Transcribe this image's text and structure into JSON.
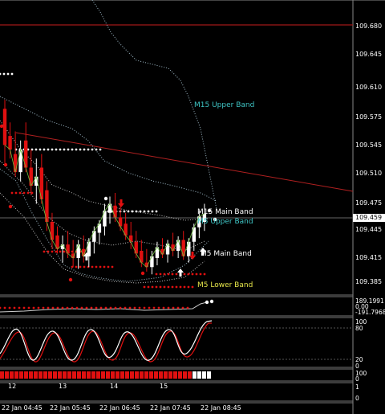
{
  "colors": {
    "background": "#000000",
    "bull": "#ffffff",
    "bear": "#e01010",
    "m15_band": "#9fbac8",
    "m5_band": "#bfbfbf",
    "trendline": "#b02020",
    "upper_label": "#3fc6c6",
    "lower_label": "#e6e64a",
    "main_label": "#ffffff"
  },
  "price_axis": {
    "ticks": [
      "109.680",
      "109.645",
      "109.610",
      "109.575",
      "109.545",
      "109.510",
      "109.475",
      "109.445",
      "109.415",
      "109.385"
    ],
    "current_price": "109.459",
    "range": [
      109.37,
      109.69
    ]
  },
  "band_labels": {
    "m15_upper": "M15 Upper Band",
    "m15_main": "M15 Main Band",
    "m5_upper": "M5 Upper Band",
    "m5_main": "M5 Main Band",
    "m5_lower": "M5 Lower Band"
  },
  "sub_indicators": {
    "osc1": [
      "189.1991",
      "0.00",
      "-191.7968"
    ],
    "stoch": [
      "100",
      "80",
      "20",
      "0"
    ],
    "bar_panel": [
      "100",
      "0"
    ],
    "bottom_panel": [
      "1",
      "0"
    ]
  },
  "day_labels": [
    "12",
    "13",
    "14",
    "15"
  ],
  "time_labels": [
    "22 Jan 04:45",
    "22 Jan 05:45",
    "22 Jan 06:45",
    "22 Jan 07:45",
    "22 Jan 08:45"
  ],
  "candles": [
    {
      "o": 109.575,
      "h": 109.585,
      "l": 109.515,
      "c": 109.535
    },
    {
      "o": 109.545,
      "h": 109.56,
      "l": 109.52,
      "c": 109.53
    },
    {
      "o": 109.525,
      "h": 109.55,
      "l": 109.5,
      "c": 109.505
    },
    {
      "o": 109.505,
      "h": 109.54,
      "l": 109.495,
      "c": 109.53
    },
    {
      "o": 109.54,
      "h": 109.56,
      "l": 109.505,
      "c": 109.51
    },
    {
      "o": 109.51,
      "h": 109.53,
      "l": 109.48,
      "c": 109.49
    },
    {
      "o": 109.49,
      "h": 109.52,
      "l": 109.47,
      "c": 109.5
    },
    {
      "o": 109.51,
      "h": 109.525,
      "l": 109.47,
      "c": 109.475
    },
    {
      "o": 109.485,
      "h": 109.495,
      "l": 109.44,
      "c": 109.45
    },
    {
      "o": 109.45,
      "h": 109.46,
      "l": 109.42,
      "c": 109.43
    },
    {
      "o": 109.435,
      "h": 109.445,
      "l": 109.415,
      "c": 109.42
    },
    {
      "o": 109.42,
      "h": 109.435,
      "l": 109.405,
      "c": 109.425
    },
    {
      "o": 109.425,
      "h": 109.44,
      "l": 109.41,
      "c": 109.415
    },
    {
      "o": 109.415,
      "h": 109.43,
      "l": 109.4,
      "c": 109.41
    },
    {
      "o": 109.41,
      "h": 109.43,
      "l": 109.398,
      "c": 109.425
    },
    {
      "o": 109.42,
      "h": 109.435,
      "l": 109.405,
      "c": 109.412
    },
    {
      "o": 109.412,
      "h": 109.432,
      "l": 109.4,
      "c": 109.428
    },
    {
      "o": 109.428,
      "h": 109.445,
      "l": 109.415,
      "c": 109.44
    },
    {
      "o": 109.438,
      "h": 109.452,
      "l": 109.425,
      "c": 109.448
    },
    {
      "o": 109.445,
      "h": 109.47,
      "l": 109.435,
      "c": 109.462
    },
    {
      "o": 109.46,
      "h": 109.478,
      "l": 109.448,
      "c": 109.47
    },
    {
      "o": 109.468,
      "h": 109.482,
      "l": 109.45,
      "c": 109.455
    },
    {
      "o": 109.455,
      "h": 109.47,
      "l": 109.44,
      "c": 109.445
    },
    {
      "o": 109.448,
      "h": 109.46,
      "l": 109.43,
      "c": 109.435
    },
    {
      "o": 109.435,
      "h": 109.45,
      "l": 109.42,
      "c": 109.428
    },
    {
      "o": 109.428,
      "h": 109.44,
      "l": 109.41,
      "c": 109.415
    },
    {
      "o": 109.418,
      "h": 109.43,
      "l": 109.4,
      "c": 109.405
    },
    {
      "o": 109.405,
      "h": 109.42,
      "l": 109.395,
      "c": 109.4
    },
    {
      "o": 109.4,
      "h": 109.418,
      "l": 109.392,
      "c": 109.412
    },
    {
      "o": 109.41,
      "h": 109.428,
      "l": 109.402,
      "c": 109.422
    },
    {
      "o": 109.42,
      "h": 109.432,
      "l": 109.41,
      "c": 109.414
    },
    {
      "o": 109.414,
      "h": 109.43,
      "l": 109.405,
      "c": 109.426
    },
    {
      "o": 109.425,
      "h": 109.438,
      "l": 109.412,
      "c": 109.418
    },
    {
      "o": 109.418,
      "h": 109.434,
      "l": 109.41,
      "c": 109.43
    },
    {
      "o": 109.43,
      "h": 109.44,
      "l": 109.408,
      "c": 109.412
    },
    {
      "o": 109.412,
      "h": 109.432,
      "l": 109.405,
      "c": 109.428
    },
    {
      "o": 109.428,
      "h": 109.448,
      "l": 109.418,
      "c": 109.444
    },
    {
      "o": 109.444,
      "h": 109.462,
      "l": 109.432,
      "c": 109.456
    },
    {
      "o": 109.45,
      "h": 109.47,
      "l": 109.44,
      "c": 109.459
    }
  ]
}
